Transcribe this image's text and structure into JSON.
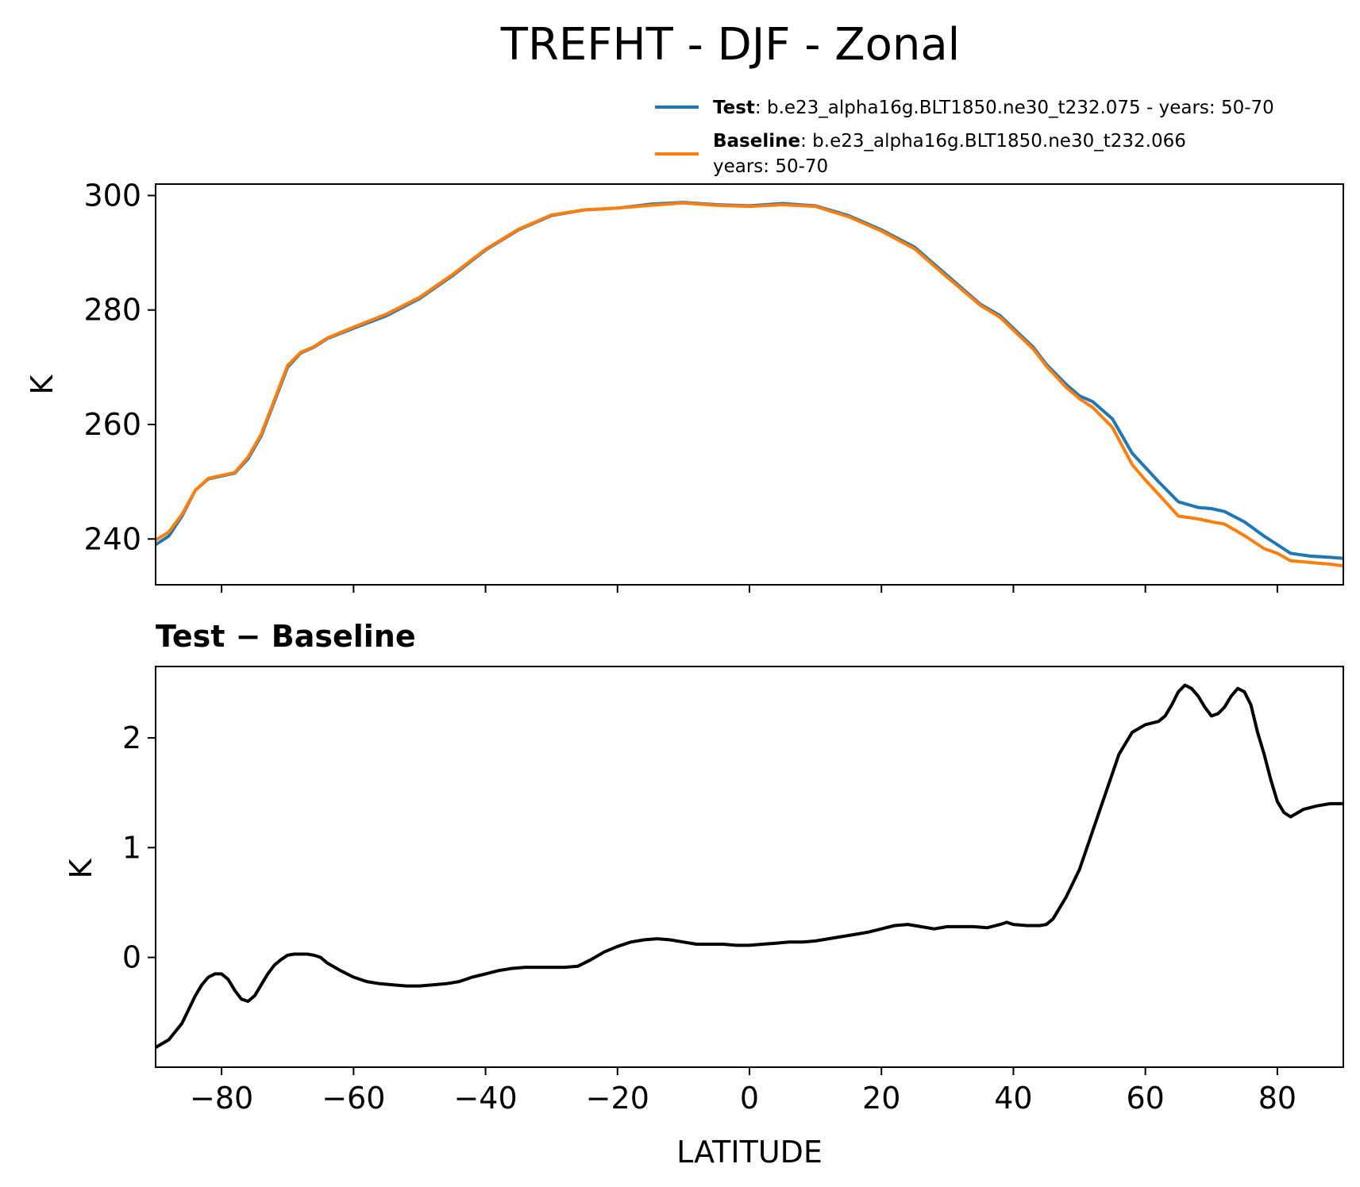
{
  "title": "TREFHT - DJF - Zonal",
  "legend": {
    "test": {
      "bold": "Test",
      "text": ": b.e23_alpha16g.BLT1850.ne30_t232.075 - years: 50-70",
      "color": "#1f77b4"
    },
    "baseline": {
      "bold": "Baseline",
      "text": ": b.e23_alpha16g.BLT1850.ne30_t232.066",
      "text2": "years: 50-70",
      "color": "#ff7f0e"
    }
  },
  "top_ylabel": "K",
  "bottom_title": "Test − Baseline",
  "bottom_ylabel": "K",
  "xlabel": "LATITUDE",
  "chart_data": [
    {
      "type": "line",
      "title": "TREFHT - DJF - Zonal",
      "xlabel": "",
      "ylabel": "K",
      "xlim": [
        -90,
        90
      ],
      "ylim": [
        232,
        302
      ],
      "yticks": [
        240,
        260,
        280,
        300
      ],
      "xticks": [
        -80,
        -60,
        -40,
        -20,
        0,
        20,
        40,
        60,
        80
      ],
      "legend_position": "above top-right",
      "series": [
        {
          "name": "Test",
          "color": "#1f77b4",
          "x": [
            -90,
            -88,
            -86,
            -84,
            -82,
            -80,
            -78,
            -76,
            -74,
            -72,
            -70,
            -68,
            -66,
            -64,
            -60,
            -55,
            -50,
            -45,
            -40,
            -35,
            -30,
            -25,
            -20,
            -15,
            -10,
            -5,
            0,
            5,
            10,
            15,
            20,
            25,
            30,
            35,
            38,
            40,
            43,
            45,
            48,
            50,
            52,
            55,
            58,
            60,
            62,
            65,
            68,
            70,
            72,
            75,
            78,
            80,
            82,
            85,
            88,
            90
          ],
          "y": [
            239,
            240.5,
            244,
            248.5,
            250.5,
            251,
            251.5,
            254,
            258,
            264,
            270,
            272.5,
            273.5,
            275,
            276.8,
            279,
            282,
            286,
            290.5,
            294,
            296.5,
            297.5,
            297.8,
            298.5,
            298.8,
            298.4,
            298.2,
            298.6,
            298.2,
            296.5,
            294,
            291,
            286,
            281,
            279,
            276.8,
            273.5,
            270.5,
            267,
            265,
            264,
            261,
            255,
            252.5,
            250,
            246.5,
            245.5,
            245.3,
            244.8,
            243,
            240.5,
            239,
            237.5,
            237,
            236.8,
            236.6
          ]
        },
        {
          "name": "Baseline",
          "color": "#ff7f0e",
          "x": [
            -90,
            -88,
            -86,
            -84,
            -82,
            -80,
            -78,
            -76,
            -74,
            -72,
            -70,
            -68,
            -66,
            -64,
            -60,
            -55,
            -50,
            -45,
            -40,
            -35,
            -30,
            -25,
            -20,
            -15,
            -10,
            -5,
            0,
            5,
            10,
            15,
            20,
            25,
            30,
            35,
            38,
            40,
            43,
            45,
            48,
            50,
            52,
            55,
            58,
            60,
            62,
            65,
            68,
            70,
            72,
            75,
            78,
            80,
            82,
            85,
            88,
            90
          ],
          "y": [
            239.8,
            241.2,
            244.3,
            248.5,
            250.6,
            251.1,
            251.6,
            254.3,
            258.3,
            264.3,
            270.3,
            272.6,
            273.6,
            275.1,
            277,
            279.3,
            282.2,
            286.2,
            290.6,
            294.1,
            296.6,
            297.5,
            297.8,
            298.3,
            298.7,
            298.3,
            298.1,
            298.4,
            298.1,
            296.3,
            293.8,
            290.7,
            285.7,
            280.8,
            278.7,
            276.5,
            273.2,
            270.2,
            266.5,
            264.5,
            263,
            259.5,
            253,
            250.3,
            247.8,
            244,
            243.5,
            243,
            242.6,
            240.6,
            238.3,
            237.5,
            236.2,
            235.9,
            235.6,
            235.3
          ]
        }
      ]
    },
    {
      "type": "line",
      "title": "Test − Baseline",
      "xlabel": "LATITUDE",
      "ylabel": "K",
      "xlim": [
        -90,
        90
      ],
      "ylim": [
        -1.0,
        2.65
      ],
      "yticks": [
        0,
        1,
        2
      ],
      "xticks": [
        -80,
        -60,
        -40,
        -20,
        0,
        20,
        40,
        60,
        80
      ],
      "series": [
        {
          "name": "Test − Baseline",
          "color": "#000000",
          "x": [
            -90,
            -88,
            -86,
            -84,
            -83,
            -82,
            -81,
            -80,
            -79,
            -78,
            -77,
            -76,
            -75,
            -74,
            -73,
            -72,
            -71,
            -70,
            -69,
            -68,
            -67,
            -66,
            -65,
            -64,
            -62,
            -60,
            -58,
            -56,
            -54,
            -52,
            -50,
            -48,
            -46,
            -44,
            -42,
            -40,
            -38,
            -36,
            -34,
            -32,
            -30,
            -28,
            -26,
            -24,
            -22,
            -20,
            -18,
            -16,
            -14,
            -12,
            -10,
            -8,
            -6,
            -4,
            -2,
            0,
            2,
            4,
            6,
            8,
            10,
            12,
            14,
            16,
            18,
            20,
            22,
            24,
            26,
            28,
            30,
            32,
            34,
            36,
            38,
            39,
            40,
            42,
            44,
            45,
            46,
            48,
            50,
            52,
            54,
            56,
            58,
            60,
            62,
            63,
            64,
            65,
            66,
            67,
            68,
            69,
            70,
            71,
            72,
            73,
            74,
            75,
            76,
            77,
            78,
            79,
            80,
            81,
            82,
            84,
            86,
            88,
            90
          ],
          "y": [
            -0.82,
            -0.75,
            -0.6,
            -0.35,
            -0.25,
            -0.18,
            -0.15,
            -0.15,
            -0.2,
            -0.3,
            -0.38,
            -0.4,
            -0.35,
            -0.25,
            -0.15,
            -0.07,
            -0.02,
            0.02,
            0.03,
            0.03,
            0.03,
            0.02,
            0.0,
            -0.05,
            -0.12,
            -0.18,
            -0.22,
            -0.24,
            -0.25,
            -0.26,
            -0.26,
            -0.25,
            -0.24,
            -0.22,
            -0.18,
            -0.15,
            -0.12,
            -0.1,
            -0.09,
            -0.09,
            -0.09,
            -0.09,
            -0.08,
            -0.02,
            0.05,
            0.1,
            0.14,
            0.16,
            0.17,
            0.16,
            0.14,
            0.12,
            0.12,
            0.12,
            0.11,
            0.11,
            0.12,
            0.13,
            0.14,
            0.14,
            0.15,
            0.17,
            0.19,
            0.21,
            0.23,
            0.26,
            0.29,
            0.3,
            0.28,
            0.26,
            0.28,
            0.28,
            0.28,
            0.27,
            0.3,
            0.32,
            0.3,
            0.29,
            0.29,
            0.3,
            0.35,
            0.55,
            0.8,
            1.15,
            1.5,
            1.85,
            2.05,
            2.12,
            2.15,
            2.2,
            2.3,
            2.42,
            2.48,
            2.45,
            2.38,
            2.28,
            2.2,
            2.22,
            2.28,
            2.38,
            2.45,
            2.42,
            2.3,
            2.05,
            1.85,
            1.62,
            1.42,
            1.32,
            1.28,
            1.35,
            1.38,
            1.4,
            1.4
          ]
        }
      ]
    }
  ]
}
